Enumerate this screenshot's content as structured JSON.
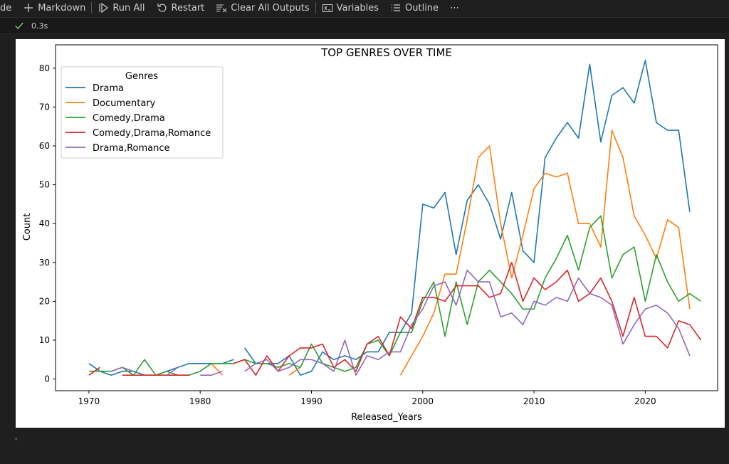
{
  "toolbar": {
    "items": [
      {
        "label": "ode",
        "icon": "none"
      },
      {
        "label": "Markdown",
        "icon": "plus-icon"
      },
      {
        "label": "Run All",
        "icon": "run-all-icon"
      },
      {
        "label": "Restart",
        "icon": "restart-icon"
      },
      {
        "label": "Clear All Outputs",
        "icon": "clear-outputs-icon"
      },
      {
        "label": "Variables",
        "icon": "variables-icon"
      },
      {
        "label": "Outline",
        "icon": "outline-icon"
      }
    ],
    "more": "⋯"
  },
  "cell_status": {
    "time": "0.3s",
    "icon": "check-icon",
    "icon_color": "#89d185"
  },
  "chart_data": {
    "type": "line",
    "title": "TOP GENRES OVER TIME",
    "xlabel": "Released_Years",
    "ylabel": "Count",
    "xlim": [
      1967,
      2026.5
    ],
    "ylim": [
      -3,
      86
    ],
    "xticks": [
      1970,
      1980,
      1990,
      2000,
      2010,
      2020
    ],
    "yticks": [
      0,
      10,
      20,
      30,
      40,
      50,
      60,
      70,
      80
    ],
    "grid": false,
    "legend": {
      "title": "Genres",
      "placement": "top-left"
    },
    "series": [
      {
        "name": "Drama",
        "color": "#1f77b4",
        "segments": [
          [
            [
              1970,
              4
            ],
            [
              1971,
              2
            ],
            [
              1972,
              1
            ],
            [
              1973,
              2
            ],
            [
              1974,
              2
            ],
            [
              1975,
              1
            ],
            [
              1976,
              1
            ],
            [
              1977,
              2
            ],
            [
              1978,
              3
            ],
            [
              1979,
              4
            ],
            [
              1980,
              4
            ],
            [
              1981,
              4
            ],
            [
              1982,
              4
            ],
            [
              1983,
              5
            ]
          ],
          [
            [
              1984,
              8
            ],
            [
              1985,
              4
            ],
            [
              1986,
              4
            ],
            [
              1987,
              4
            ],
            [
              1988,
              6
            ],
            [
              1989,
              1
            ],
            [
              1990,
              2
            ],
            [
              1991,
              7
            ],
            [
              1992,
              5
            ],
            [
              1993,
              6
            ],
            [
              1994,
              5
            ],
            [
              1995,
              7
            ],
            [
              1996,
              7
            ],
            [
              1997,
              12
            ],
            [
              1998,
              12
            ],
            [
              1999,
              17
            ],
            [
              2000,
              45
            ],
            [
              2001,
              44
            ],
            [
              2002,
              48
            ],
            [
              2003,
              32
            ],
            [
              2004,
              46
            ],
            [
              2005,
              50
            ],
            [
              2006,
              45
            ],
            [
              2007,
              36
            ],
            [
              2008,
              48
            ],
            [
              2009,
              33
            ],
            [
              2010,
              30
            ],
            [
              2011,
              57
            ],
            [
              2012,
              62
            ],
            [
              2013,
              66
            ],
            [
              2014,
              62
            ],
            [
              2015,
              81
            ],
            [
              2016,
              61
            ],
            [
              2017,
              73
            ],
            [
              2018,
              75
            ],
            [
              2019,
              71
            ],
            [
              2020,
              82
            ],
            [
              2021,
              66
            ],
            [
              2022,
              64
            ],
            [
              2023,
              64
            ],
            [
              2024,
              43
            ]
          ]
        ]
      },
      {
        "name": "Documentary",
        "color": "#ff7f0e",
        "segments": [
          [
            [
              1981,
              4
            ],
            [
              1982,
              1
            ]
          ],
          [
            [
              1988,
              1
            ],
            [
              1989,
              3
            ]
          ],
          [
            [
              1998,
              1
            ],
            [
              1999,
              6
            ],
            [
              2000,
              11
            ],
            [
              2001,
              17
            ],
            [
              2002,
              27
            ],
            [
              2003,
              27
            ],
            [
              2004,
              41
            ],
            [
              2005,
              57
            ],
            [
              2006,
              60
            ],
            [
              2007,
              40
            ],
            [
              2008,
              26
            ],
            [
              2009,
              37
            ],
            [
              2010,
              49
            ],
            [
              2011,
              53
            ],
            [
              2012,
              52
            ],
            [
              2013,
              53
            ],
            [
              2014,
              40
            ],
            [
              2015,
              40
            ],
            [
              2016,
              34
            ],
            [
              2017,
              64
            ],
            [
              2018,
              57
            ],
            [
              2019,
              42
            ],
            [
              2020,
              37
            ],
            [
              2021,
              31
            ],
            [
              2022,
              41
            ],
            [
              2023,
              39
            ],
            [
              2024,
              18
            ]
          ]
        ]
      },
      {
        "name": "Comedy,Drama",
        "color": "#2ca02c",
        "segments": [
          [
            [
              1970,
              2
            ],
            [
              1971,
              2
            ],
            [
              1972,
              2
            ],
            [
              1973,
              3
            ],
            [
              1974,
              1
            ],
            [
              1975,
              5
            ],
            [
              1976,
              1
            ],
            [
              1977,
              2
            ],
            [
              1978,
              1
            ],
            [
              1979,
              1
            ],
            [
              1980,
              2
            ],
            [
              1981,
              4
            ],
            [
              1982,
              4
            ],
            [
              1983,
              4
            ],
            [
              1984,
              5
            ],
            [
              1985,
              4
            ],
            [
              1986,
              4
            ],
            [
              1987,
              3
            ],
            [
              1988,
              4
            ],
            [
              1989,
              3
            ],
            [
              1990,
              9
            ],
            [
              1991,
              4
            ],
            [
              1992,
              3
            ],
            [
              1993,
              2
            ],
            [
              1994,
              3
            ],
            [
              1995,
              9
            ],
            [
              1996,
              10
            ],
            [
              1997,
              6
            ],
            [
              1998,
              12
            ],
            [
              1999,
              12
            ],
            [
              2000,
              20
            ],
            [
              2001,
              25
            ],
            [
              2002,
              11
            ],
            [
              2003,
              25
            ],
            [
              2004,
              14
            ],
            [
              2005,
              25
            ],
            [
              2006,
              28
            ],
            [
              2007,
              25
            ],
            [
              2008,
              22
            ],
            [
              2009,
              18
            ],
            [
              2010,
              18
            ],
            [
              2011,
              26
            ],
            [
              2012,
              31
            ],
            [
              2013,
              37
            ],
            [
              2014,
              28
            ],
            [
              2015,
              39
            ],
            [
              2016,
              42
            ],
            [
              2017,
              26
            ],
            [
              2018,
              32
            ],
            [
              2019,
              34
            ],
            [
              2020,
              20
            ],
            [
              2021,
              32
            ],
            [
              2022,
              25
            ],
            [
              2023,
              20
            ],
            [
              2024,
              22
            ],
            [
              2025,
              20
            ]
          ]
        ]
      },
      {
        "name": "Comedy,Drama,Romance",
        "color": "#d62728",
        "segments": [
          [
            [
              1970,
              1
            ],
            [
              1971,
              3
            ]
          ],
          [
            [
              1973,
              1
            ],
            [
              1974,
              1
            ],
            [
              1975,
              1
            ],
            [
              1976,
              1
            ],
            [
              1977,
              1
            ],
            [
              1978,
              1
            ],
            [
              1979,
              1
            ]
          ],
          [
            [
              1983,
              4
            ],
            [
              1984,
              5
            ],
            [
              1985,
              1
            ],
            [
              1986,
              6
            ],
            [
              1987,
              2
            ],
            [
              1988,
              6
            ],
            [
              1989,
              8
            ],
            [
              1990,
              8
            ],
            [
              1991,
              9
            ],
            [
              1992,
              3
            ],
            [
              1993,
              5
            ],
            [
              1994,
              2
            ],
            [
              1995,
              9
            ],
            [
              1996,
              11
            ],
            [
              1997,
              6
            ],
            [
              1998,
              16
            ],
            [
              1999,
              13
            ],
            [
              2000,
              21
            ],
            [
              2001,
              21
            ],
            [
              2002,
              20
            ],
            [
              2003,
              24
            ],
            [
              2004,
              24
            ],
            [
              2005,
              24
            ],
            [
              2006,
              21
            ],
            [
              2007,
              22
            ],
            [
              2008,
              30
            ],
            [
              2009,
              20
            ],
            [
              2010,
              26
            ],
            [
              2011,
              23
            ],
            [
              2012,
              25
            ],
            [
              2013,
              28
            ],
            [
              2014,
              20
            ],
            [
              2015,
              22
            ],
            [
              2016,
              26
            ],
            [
              2017,
              20
            ],
            [
              2018,
              11
            ],
            [
              2019,
              21
            ],
            [
              2020,
              11
            ],
            [
              2021,
              11
            ],
            [
              2022,
              8
            ],
            [
              2023,
              15
            ],
            [
              2024,
              14
            ],
            [
              2025,
              10
            ]
          ]
        ]
      },
      {
        "name": "Drama,Romance",
        "color": "#9467bd",
        "segments": [
          [
            [
              1972,
              2
            ],
            [
              1973,
              3
            ],
            [
              1974,
              2
            ]
          ],
          [
            [
              1977,
              1
            ],
            [
              1978,
              3
            ]
          ],
          [
            [
              1980,
              1
            ],
            [
              1981,
              1
            ],
            [
              1982,
              2
            ]
          ],
          [
            [
              1984,
              2
            ],
            [
              1985,
              4
            ],
            [
              1986,
              5
            ],
            [
              1987,
              2
            ],
            [
              1988,
              3
            ],
            [
              1989,
              5
            ],
            [
              1990,
              5
            ],
            [
              1991,
              4
            ],
            [
              1992,
              2
            ],
            [
              1993,
              10
            ],
            [
              1994,
              1
            ],
            [
              1995,
              6
            ],
            [
              1996,
              5
            ],
            [
              1997,
              7
            ],
            [
              1998,
              7
            ],
            [
              1999,
              14
            ],
            [
              2000,
              18
            ],
            [
              2001,
              24
            ],
            [
              2002,
              25
            ],
            [
              2003,
              19
            ],
            [
              2004,
              28
            ],
            [
              2005,
              25
            ],
            [
              2006,
              25
            ],
            [
              2007,
              16
            ],
            [
              2008,
              17
            ],
            [
              2009,
              14
            ],
            [
              2010,
              20
            ],
            [
              2011,
              19
            ],
            [
              2012,
              21
            ],
            [
              2013,
              20
            ],
            [
              2014,
              26
            ],
            [
              2015,
              22
            ],
            [
              2016,
              21
            ],
            [
              2017,
              19
            ],
            [
              2018,
              9
            ],
            [
              2019,
              14
            ],
            [
              2020,
              18
            ],
            [
              2021,
              19
            ],
            [
              2022,
              17
            ],
            [
              2023,
              13
            ],
            [
              2024,
              6
            ]
          ]
        ]
      }
    ]
  }
}
